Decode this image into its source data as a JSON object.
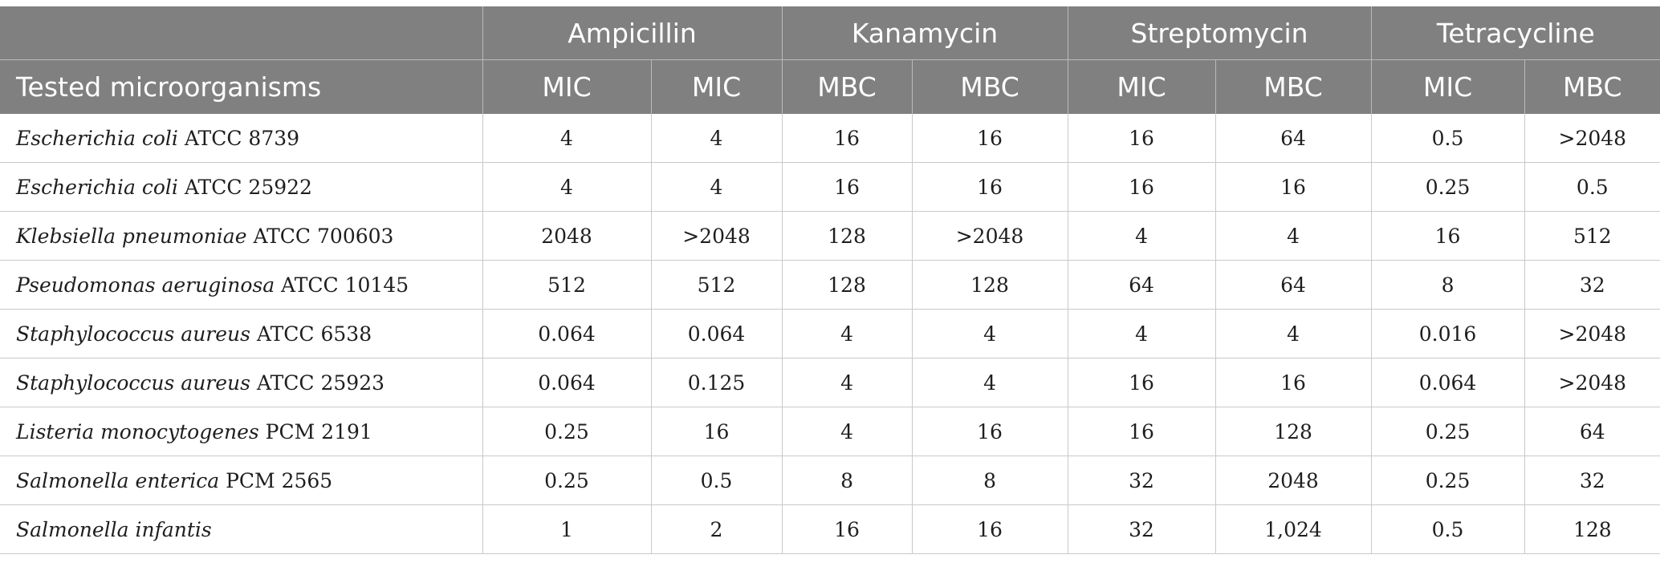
{
  "table": {
    "group_headers": [
      "",
      "Ampicillin",
      "Kanamycin",
      "Streptomycin",
      "Tetracycline"
    ],
    "sub_headers": [
      "Tested microorganisms",
      "MIC",
      "MIC",
      "MBC",
      "MBC",
      "MIC",
      "MBC",
      "MIC",
      "MBC"
    ],
    "rows": [
      {
        "species": "Escherichia coli",
        "strain": " ATCC 8739",
        "values": [
          "4",
          "4",
          "16",
          "16",
          "16",
          "64",
          "0.5",
          ">2048"
        ]
      },
      {
        "species": "Escherichia coli",
        "strain": " ATCC 25922",
        "values": [
          "4",
          "4",
          "16",
          "16",
          "16",
          "16",
          "0.25",
          "0.5"
        ]
      },
      {
        "species": "Klebsiella pneumoniae",
        "strain": " ATCC 700603",
        "values": [
          "2048",
          ">2048",
          "128",
          ">2048",
          "4",
          "4",
          "16",
          "512"
        ]
      },
      {
        "species": "Pseudomonas aeruginosa",
        "strain": " ATCC 10145",
        "values": [
          "512",
          "512",
          "128",
          "128",
          "64",
          "64",
          "8",
          "32"
        ]
      },
      {
        "species": "Staphylococcus aureus",
        "strain": " ATCC 6538",
        "values": [
          "0.064",
          "0.064",
          "4",
          "4",
          "4",
          "4",
          "0.016",
          ">2048"
        ]
      },
      {
        "species": "Staphylococcus aureus",
        "strain": " ATCC 25923",
        "values": [
          "0.064",
          "0.125",
          "4",
          "4",
          "16",
          "16",
          "0.064",
          ">2048"
        ]
      },
      {
        "species": "Listeria monocytogenes",
        "strain": " PCM 2191",
        "values": [
          "0.25",
          "16",
          "4",
          "16",
          "16",
          "128",
          "0.25",
          "64"
        ]
      },
      {
        "species": "Salmonella enterica",
        "strain": " PCM 2565",
        "values": [
          "0.25",
          "0.5",
          "8",
          "8",
          "32",
          "2048",
          "0.25",
          "32"
        ]
      },
      {
        "species": "Salmonella infantis",
        "strain": "",
        "values": [
          "1",
          "2",
          "16",
          "16",
          "32",
          "1,024",
          "0.5",
          "128"
        ]
      }
    ]
  }
}
